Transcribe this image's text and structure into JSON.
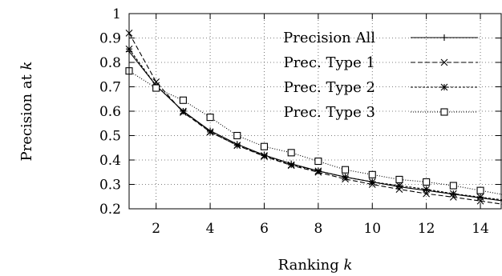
{
  "chart_data": {
    "type": "line",
    "xlabel": "Ranking k",
    "ylabel": "Precision at k",
    "xlim": [
      1,
      14.8
    ],
    "ylim": [
      0.2,
      1.0
    ],
    "xticks": [
      2,
      4,
      6,
      8,
      10,
      12,
      14
    ],
    "yticks": [
      0.2,
      0.3,
      0.4,
      0.5,
      0.6,
      0.7,
      0.8,
      0.9,
      1.0
    ],
    "ytick_labels": [
      "0.2",
      "0.3",
      "0.4",
      "0.5",
      "0.6",
      "0.7",
      "0.8",
      "0.9",
      "1"
    ],
    "grid": true,
    "legend_position": "top-right",
    "x": [
      1,
      2,
      3,
      4,
      5,
      6,
      7,
      8,
      9,
      10,
      11,
      12,
      13,
      14
    ],
    "series": [
      {
        "name": "Precision All",
        "marker": "plus",
        "dash": "solid",
        "values": [
          0.845,
          0.705,
          0.6,
          0.52,
          0.465,
          0.42,
          0.385,
          0.355,
          0.33,
          0.31,
          0.29,
          0.275,
          0.26,
          0.245
        ]
      },
      {
        "name": "Prec. Type 1",
        "marker": "x",
        "dash": "dashed",
        "values": [
          0.92,
          0.72,
          0.595,
          0.515,
          0.46,
          0.415,
          0.378,
          0.35,
          0.322,
          0.3,
          0.28,
          0.262,
          0.248,
          0.232
        ]
      },
      {
        "name": "Prec. Type 2",
        "marker": "star",
        "dash": "dense-dashed",
        "values": [
          0.855,
          0.705,
          0.6,
          0.515,
          0.46,
          0.418,
          0.38,
          0.355,
          0.33,
          0.31,
          0.295,
          0.28,
          0.262,
          0.248
        ]
      },
      {
        "name": "Prec. Type 3",
        "marker": "square",
        "dash": "dotted",
        "values": [
          0.765,
          0.695,
          0.645,
          0.575,
          0.5,
          0.455,
          0.43,
          0.395,
          0.36,
          0.34,
          0.32,
          0.31,
          0.295,
          0.275
        ]
      }
    ]
  }
}
